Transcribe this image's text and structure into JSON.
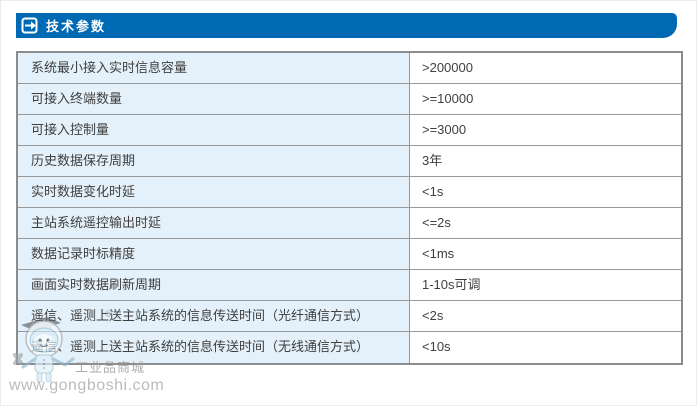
{
  "header": {
    "title": "技术参数",
    "icon": "enter-arrow-icon"
  },
  "table": {
    "rows": [
      {
        "param": "系统最小接入实时信息容量",
        "value": ">200000"
      },
      {
        "param": "可接入终端数量",
        "value": ">=10000"
      },
      {
        "param": "可接入控制量",
        "value": ">=3000"
      },
      {
        "param": "历史数据保存周期",
        "value": "3年"
      },
      {
        "param": "实时数据变化时延",
        "value": "<1s"
      },
      {
        "param": "主站系统遥控输出时延",
        "value": "<=2s"
      },
      {
        "param": "数据记录时标精度",
        "value": "<1ms"
      },
      {
        "param": "画面实时数据刷新周期",
        "value": "1-10s可调"
      },
      {
        "param": "遥信、遥测上送主站系统的信息传送时间（光纤通信方式）",
        "value": "<2s"
      },
      {
        "param": "遥信、遥测上送主站系统的信息传送时间（无线通信方式）",
        "value": "<10s"
      }
    ]
  },
  "watermark": {
    "brand": "工业品商城",
    "registered": "®",
    "url": "www.gongboshi.com"
  },
  "colors": {
    "header_bg": "#0069b4",
    "param_cell_bg": "#e4f1fa",
    "table_border": "#8c8c8c",
    "text": "#3f3f3f",
    "watermark_text": "#b8b8b8"
  }
}
